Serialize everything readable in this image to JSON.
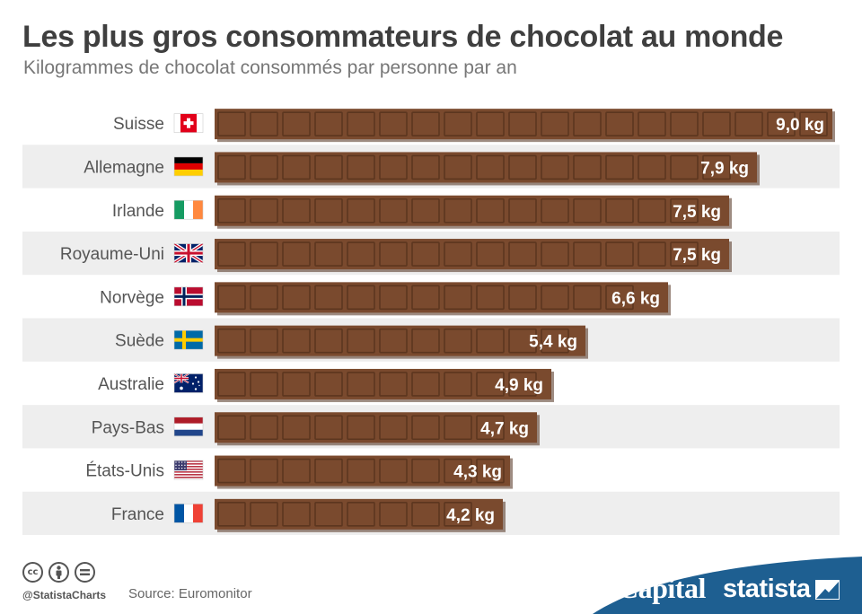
{
  "chart_data": {
    "type": "bar",
    "orientation": "horizontal",
    "title": "Les plus gros consommateurs de chocolat au monde",
    "subtitle": "Kilogrammes de chocolat consommés par personne par an",
    "categories": [
      "Suisse",
      "Allemagne",
      "Irlande",
      "Royaume-Uni",
      "Norvège",
      "Suède",
      "Australie",
      "Pays-Bas",
      "États-Unis",
      "France"
    ],
    "values": [
      9.0,
      7.9,
      7.5,
      7.5,
      6.6,
      5.4,
      4.9,
      4.7,
      4.3,
      4.2
    ],
    "value_labels": [
      "9,0 kg",
      "7,9 kg",
      "7,5 kg",
      "7,5 kg",
      "6,6 kg",
      "5,4 kg",
      "4,9 kg",
      "4,7 kg",
      "4,3 kg",
      "4,2 kg"
    ],
    "flags": [
      "ch",
      "de",
      "ie",
      "gb",
      "no",
      "se",
      "au",
      "nl",
      "us",
      "fr"
    ],
    "xlim": [
      0,
      9.0
    ],
    "grid": false,
    "legend": "none",
    "bar_color": "#7a4a2e",
    "row_stripe_color": "#eeeeee"
  },
  "footer": {
    "handle": "@StatistaCharts",
    "source": "Source: Euromonitor",
    "license_icons": [
      "creative-commons-icon",
      "attribution-icon",
      "no-derivatives-icon"
    ]
  },
  "brands": {
    "capital": "Capital",
    "statista": "statista",
    "band_color": "#1e5f91"
  }
}
